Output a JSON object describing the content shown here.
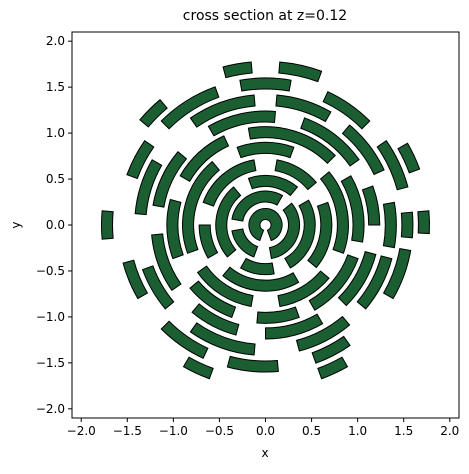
{
  "chart_data": {
    "type": "patches",
    "title": "cross section at z=0.12",
    "xlabel": "x",
    "ylabel": "y",
    "color": "#1a5e32",
    "edgecolor": "#000000",
    "xlim": [
      -2.1,
      2.1
    ],
    "ylim": [
      -2.1,
      2.1
    ],
    "xticks": [
      {
        "value": -2.0,
        "label": "−2.0"
      },
      {
        "value": -1.5,
        "label": "−1.5"
      },
      {
        "value": -1.0,
        "label": "−1.0"
      },
      {
        "value": -0.5,
        "label": "−0.5"
      },
      {
        "value": 0.0,
        "label": "0.0"
      },
      {
        "value": 0.5,
        "label": "0.5"
      },
      {
        "value": 1.0,
        "label": "1.0"
      },
      {
        "value": 1.5,
        "label": "1.5"
      },
      {
        "value": 2.0,
        "label": "2.0"
      }
    ],
    "yticks": [
      {
        "value": -2.0,
        "label": "−2.0"
      },
      {
        "value": -1.5,
        "label": "−1.5"
      },
      {
        "value": -1.0,
        "label": "−1.0"
      },
      {
        "value": -0.5,
        "label": "−0.5"
      },
      {
        "value": 0.0,
        "label": "0.0"
      },
      {
        "value": 0.5,
        "label": "0.5"
      },
      {
        "value": 1.0,
        "label": "1.0"
      },
      {
        "value": 1.5,
        "label": "1.5"
      },
      {
        "value": 2.0,
        "label": "2.0"
      }
    ],
    "patches": [
      [
        0.06,
        0.18,
        -70,
        250
      ],
      [
        0.25,
        0.37,
        -80,
        40
      ],
      [
        0.25,
        0.37,
        60,
        170
      ],
      [
        0.25,
        0.37,
        190,
        250
      ],
      [
        0.42,
        0.54,
        -60,
        30
      ],
      [
        0.42,
        0.54,
        50,
        110
      ],
      [
        0.42,
        0.54,
        130,
        220
      ],
      [
        0.42,
        0.54,
        240,
        280
      ],
      [
        0.6,
        0.72,
        -40,
        20
      ],
      [
        0.6,
        0.72,
        40,
        80
      ],
      [
        0.6,
        0.72,
        100,
        160
      ],
      [
        0.6,
        0.72,
        180,
        210
      ],
      [
        0.6,
        0.72,
        230,
        300
      ],
      [
        0.78,
        0.9,
        -20,
        40
      ],
      [
        0.78,
        0.9,
        70,
        110
      ],
      [
        0.78,
        0.9,
        130,
        200
      ],
      [
        0.78,
        0.9,
        215,
        260
      ],
      [
        0.78,
        0.9,
        280,
        320
      ],
      [
        0.95,
        1.07,
        -10,
        30
      ],
      [
        0.95,
        1.07,
        45,
        100
      ],
      [
        0.95,
        1.07,
        115,
        150
      ],
      [
        0.95,
        1.07,
        165,
        200
      ],
      [
        0.95,
        1.07,
        220,
        250
      ],
      [
        0.95,
        1.07,
        265,
        290
      ],
      [
        0.95,
        1.07,
        300,
        340
      ],
      [
        1.12,
        1.24,
        0,
        20
      ],
      [
        1.12,
        1.24,
        35,
        70
      ],
      [
        1.12,
        1.24,
        85,
        120
      ],
      [
        1.12,
        1.24,
        140,
        170
      ],
      [
        1.12,
        1.24,
        185,
        215
      ],
      [
        1.12,
        1.24,
        230,
        255
      ],
      [
        1.12,
        1.24,
        270,
        300
      ],
      [
        1.12,
        1.24,
        315,
        345
      ],
      [
        1.3,
        1.42,
        -10,
        10
      ],
      [
        1.3,
        1.42,
        25,
        50
      ],
      [
        1.3,
        1.42,
        60,
        85
      ],
      [
        1.3,
        1.42,
        95,
        125
      ],
      [
        1.3,
        1.42,
        150,
        175
      ],
      [
        1.3,
        1.42,
        200,
        220
      ],
      [
        1.3,
        1.42,
        235,
        265
      ],
      [
        1.3,
        1.42,
        285,
        310
      ],
      [
        1.3,
        1.42,
        320,
        345
      ],
      [
        1.48,
        1.6,
        -5,
        5
      ],
      [
        1.48,
        1.6,
        15,
        35
      ],
      [
        1.48,
        1.6,
        45,
        65
      ],
      [
        1.48,
        1.6,
        80,
        100
      ],
      [
        1.48,
        1.6,
        110,
        135
      ],
      [
        1.48,
        1.6,
        145,
        160
      ],
      [
        1.48,
        1.6,
        195,
        210
      ],
      [
        1.48,
        1.6,
        225,
        245
      ],
      [
        1.48,
        1.6,
        255,
        275
      ],
      [
        1.48,
        1.6,
        290,
        305
      ],
      [
        1.48,
        1.6,
        330,
        350
      ],
      [
        1.66,
        1.78,
        -3,
        5
      ],
      [
        1.66,
        1.78,
        20,
        30
      ],
      [
        1.66,
        1.78,
        70,
        85
      ],
      [
        1.66,
        1.78,
        95,
        105
      ],
      [
        1.66,
        1.78,
        130,
        140
      ],
      [
        1.66,
        1.78,
        175,
        185
      ],
      [
        1.66,
        1.78,
        240,
        250
      ],
      [
        1.66,
        1.78,
        290,
        300
      ]
    ]
  }
}
